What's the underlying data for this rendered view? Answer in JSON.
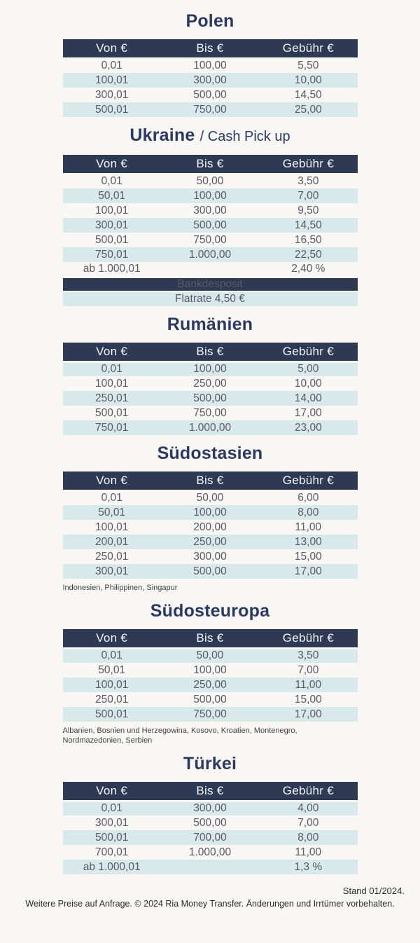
{
  "colors": {
    "header_bg": "#2e3954",
    "stripe_bg": "#d8e9eb",
    "title_text": "#2c3960",
    "cell_text": "#5a5766",
    "paper_bg": "#f8f7f4"
  },
  "sections": [
    {
      "id": "polen",
      "title": "Polen",
      "subtitle": "",
      "columns": [
        "Von €",
        "Bis €",
        "Gebühr €"
      ],
      "first_row_shaded": false,
      "rows": [
        [
          "0,01",
          "100,00",
          "5,50"
        ],
        [
          "100,01",
          "300,00",
          "10,00"
        ],
        [
          "300,01",
          "500,00",
          "14,50"
        ],
        [
          "500,01",
          "750,00",
          "25,00"
        ]
      ]
    },
    {
      "id": "ukraine",
      "title": "Ukraine",
      "subtitle": "/ Cash Pick up",
      "columns": [
        "Von €",
        "Bis €",
        "Gebühr €"
      ],
      "first_row_shaded": false,
      "rows": [
        [
          "0,01",
          "50,00",
          "3,50"
        ],
        [
          "50,01",
          "100,00",
          "7,00"
        ],
        [
          "100,01",
          "300,00",
          "9,50"
        ],
        [
          "300,01",
          "500,00",
          "14,50"
        ],
        [
          "500,01",
          "750,00",
          "16,50"
        ],
        [
          "750,01",
          "1.000,00",
          "22,50"
        ],
        [
          "ab 1.000,01",
          "",
          "2,40 %"
        ]
      ],
      "banner": {
        "label": "Bankdesposit",
        "value": "Flatrate 4,50 €"
      }
    },
    {
      "id": "rumaenien",
      "title": "Rumänien",
      "subtitle": "",
      "columns": [
        "Von €",
        "Bis €",
        "Gebühr €"
      ],
      "first_row_shaded": true,
      "rows": [
        [
          "0,01",
          "100,00",
          "5,00"
        ],
        [
          "100,01",
          "250,00",
          "10,00"
        ],
        [
          "250,01",
          "500,00",
          "14,00"
        ],
        [
          "500,01",
          "750,00",
          "17,00"
        ],
        [
          "750,01",
          "1.000,00",
          "23,00"
        ]
      ]
    },
    {
      "id": "suedostasien",
      "title": "Südostasien",
      "subtitle": "",
      "columns": [
        "Von €",
        "Bis €",
        "Gebühr €"
      ],
      "first_row_shaded": false,
      "rows": [
        [
          "0,01",
          "50,00",
          "6,00"
        ],
        [
          "50,01",
          "100,00",
          "8,00"
        ],
        [
          "100,01",
          "200,00",
          "11,00"
        ],
        [
          "200,01",
          "250,00",
          "13,00"
        ],
        [
          "250,01",
          "300,00",
          "15,00"
        ],
        [
          "300,01",
          "500,00",
          "17,00"
        ]
      ],
      "footnote": "Indonesien, Philippinen, Singapur"
    },
    {
      "id": "suedosteuropa",
      "title": "Südosteuropa",
      "subtitle": "",
      "columns": [
        "Von €",
        "Bis €",
        "Gebühr €"
      ],
      "first_row_shaded": true,
      "rows": [
        [
          "0,01",
          "50,00",
          "3,50"
        ],
        [
          "50,01",
          "100,00",
          "7,00"
        ],
        [
          "100,01",
          "250,00",
          "11,00"
        ],
        [
          "250,01",
          "500,00",
          "15,00"
        ],
        [
          "500,01",
          "750,00",
          "17,00"
        ]
      ],
      "footnote": "Albanien, Bosnien und Herzegowina, Kosovo, Kroatien, Montenegro, Nordmazedonien, Serbien"
    },
    {
      "id": "tuerkei",
      "title": "Türkei",
      "subtitle": "",
      "columns": [
        "Von €",
        "Bis €",
        "Gebühr €"
      ],
      "first_row_shaded": true,
      "rows": [
        [
          "0,01",
          "300,00",
          "4,00"
        ],
        [
          "300,01",
          "500,00",
          "7,00"
        ],
        [
          "500,01",
          "700,00",
          "8,00"
        ],
        [
          "700,01",
          "1.000,00",
          "11,00"
        ],
        [
          "ab 1.000,01",
          "",
          "1,3 %"
        ]
      ]
    }
  ],
  "footer": {
    "stand": "Stand 01/2024.",
    "note": "Weitere Preise auf Anfrage. © 2024 Ria Money Transfer. Änderungen und Irrtümer vorbehalten."
  }
}
